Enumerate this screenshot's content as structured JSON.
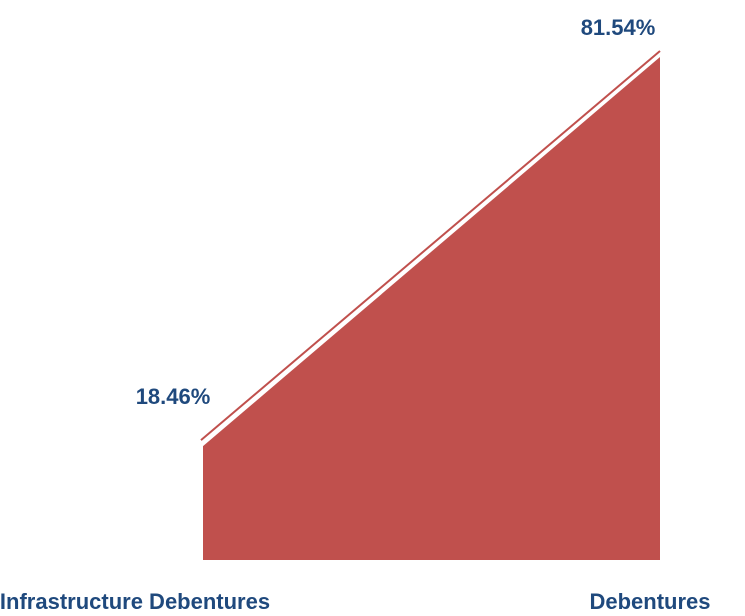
{
  "chart_data": {
    "type": "area",
    "categories": [
      "Infrastructure Debentures",
      "Debentures"
    ],
    "values": [
      18.46,
      81.54
    ],
    "data_labels": [
      "18.46%",
      "81.54%"
    ],
    "title": "",
    "xlabel": "",
    "ylabel": "",
    "ylim": [
      0,
      85
    ],
    "grid": false,
    "legend": "none"
  },
  "colors": {
    "area_fill": "#C0504D",
    "area_edge": "#FFFFFF",
    "label_text": "#1F497D",
    "category_text": "#1F497D"
  }
}
